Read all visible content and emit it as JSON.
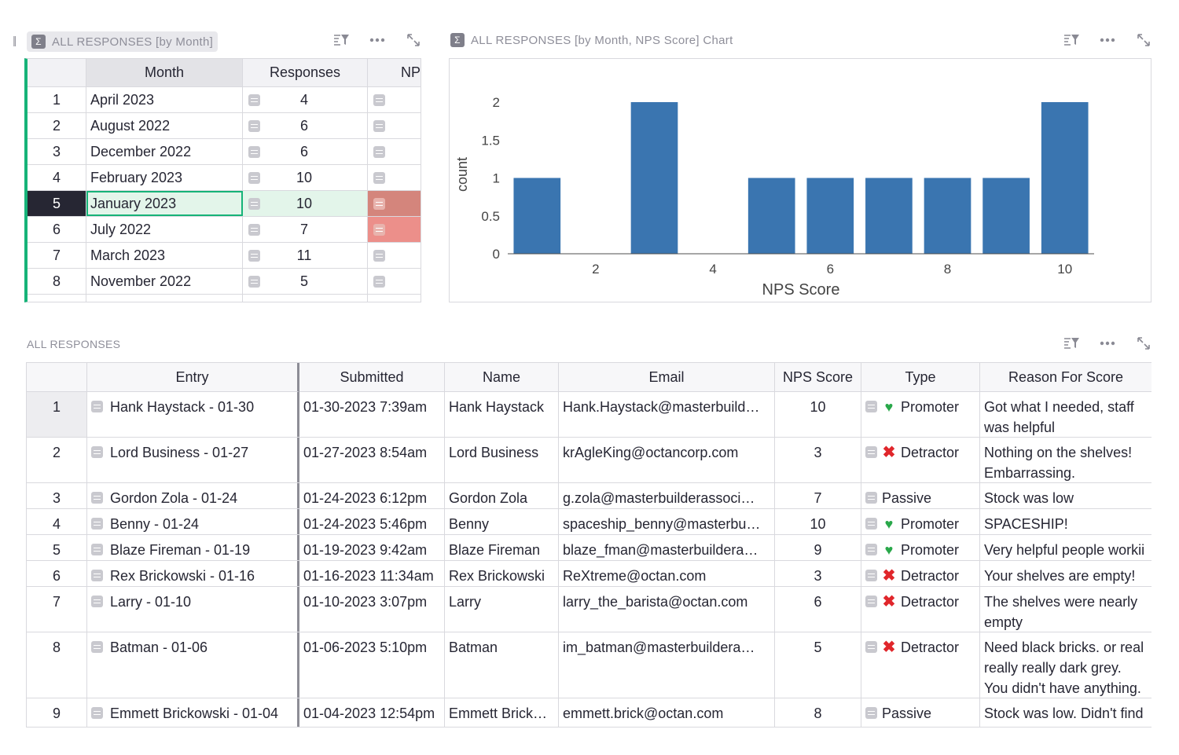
{
  "month_table": {
    "title": "ALL RESPONSES [by Month]",
    "columns": [
      "Month",
      "Responses",
      "NP"
    ],
    "rows": [
      {
        "num": "1",
        "month": "April 2023",
        "responses": "4"
      },
      {
        "num": "2",
        "month": "August 2022",
        "responses": "6"
      },
      {
        "num": "3",
        "month": "December 2022",
        "responses": "6"
      },
      {
        "num": "4",
        "month": "February 2023",
        "responses": "10"
      },
      {
        "num": "5",
        "month": "January 2023",
        "responses": "10"
      },
      {
        "num": "6",
        "month": "July 2022",
        "responses": "7"
      },
      {
        "num": "7",
        "month": "March 2023",
        "responses": "11"
      },
      {
        "num": "8",
        "month": "November 2022",
        "responses": "5"
      }
    ],
    "selected_row": 5,
    "colors": {
      "accent": "#16b378",
      "selected_row_bg": "#e3f5ea",
      "selected_num_bg": "#262633",
      "np_selected": "#d4857c",
      "np_flag": "#ec8f8a"
    }
  },
  "chart_widget": {
    "title": "ALL RESPONSES [by Month, NPS Score] Chart"
  },
  "chart_data": {
    "type": "bar",
    "x": [
      1,
      3,
      5,
      6,
      7,
      8,
      9,
      10
    ],
    "values": [
      1,
      2,
      1,
      1,
      1,
      1,
      1,
      2
    ],
    "xlabel": "NPS Score",
    "ylabel": "count",
    "xticks": [
      "2",
      "4",
      "6",
      "8",
      "10"
    ],
    "yticks": [
      "0",
      "0.5",
      "1",
      "1.5",
      "2"
    ],
    "xlim": [
      0.5,
      10.5
    ],
    "ylim": [
      0,
      2
    ],
    "color": "#3a75b0"
  },
  "responses_table": {
    "title": "ALL RESPONSES",
    "columns": [
      "Entry",
      "Submitted",
      "Name",
      "Email",
      "NPS Score",
      "Type",
      "Reason For Score"
    ],
    "rows": [
      {
        "num": "1",
        "entry": "Hank Haystack - 01-30",
        "submitted": "01-30-2023 7:39am",
        "name": "Hank Haystack",
        "email": "Hank.Haystack@masterbuild…",
        "score": "10",
        "type": "Promoter",
        "type_icon": "green-heart-icon",
        "reason": "Got what I needed, staff was helpful"
      },
      {
        "num": "2",
        "entry": "Lord Business - 01-27",
        "submitted": "01-27-2023 8:54am",
        "name": "Lord Business",
        "email": "krAgleKing@octancorp.com",
        "score": "3",
        "type": "Detractor",
        "type_icon": "red-x-icon",
        "reason": "Nothing on the shelves! Embarrassing."
      },
      {
        "num": "3",
        "entry": "Gordon Zola - 01-24",
        "submitted": "01-24-2023 6:12pm",
        "name": "Gordon Zola",
        "email": "g.zola@masterbuilderassoci…",
        "score": "7",
        "type": "Passive",
        "type_icon": "",
        "reason": "Stock was low"
      },
      {
        "num": "4",
        "entry": "Benny - 01-24",
        "submitted": "01-24-2023 5:46pm",
        "name": "Benny",
        "email": "spaceship_benny@masterbu…",
        "score": "10",
        "type": "Promoter",
        "type_icon": "green-heart-icon",
        "reason": "SPACESHIP!"
      },
      {
        "num": "5",
        "entry": "Blaze Fireman - 01-19",
        "submitted": "01-19-2023 9:42am",
        "name": "Blaze Fireman",
        "email": "blaze_fman@masterbuildera…",
        "score": "9",
        "type": "Promoter",
        "type_icon": "green-heart-icon",
        "reason": "Very helpful people workii"
      },
      {
        "num": "6",
        "entry": "Rex Brickowski - 01-16",
        "submitted": "01-16-2023 11:34am",
        "name": "Rex Brickowski",
        "email": "ReXtreme@octan.com",
        "score": "3",
        "type": "Detractor",
        "type_icon": "red-x-icon",
        "reason": "Your shelves are empty!"
      },
      {
        "num": "7",
        "entry": "Larry - 01-10",
        "submitted": "01-10-2023 3:07pm",
        "name": "Larry",
        "email": "larry_the_barista@octan.com",
        "score": "6",
        "type": "Detractor",
        "type_icon": "red-x-icon",
        "reason": "The shelves were nearly empty"
      },
      {
        "num": "8",
        "entry": "Batman - 01-06",
        "submitted": "01-06-2023 5:10pm",
        "name": "Batman",
        "email": "im_batman@masterbuildera…",
        "score": "5",
        "type": "Detractor",
        "type_icon": "red-x-icon",
        "reason": "Need black bricks. or real really really dark grey. You didn't have anything."
      },
      {
        "num": "9",
        "entry": "Emmett Brickowski - 01-04",
        "submitted": "01-04-2023 12:54pm",
        "name": "Emmett Brick…",
        "email": "emmett.brick@octan.com",
        "score": "8",
        "type": "Passive",
        "type_icon": "",
        "reason": "Stock was low. Didn't find"
      }
    ]
  }
}
